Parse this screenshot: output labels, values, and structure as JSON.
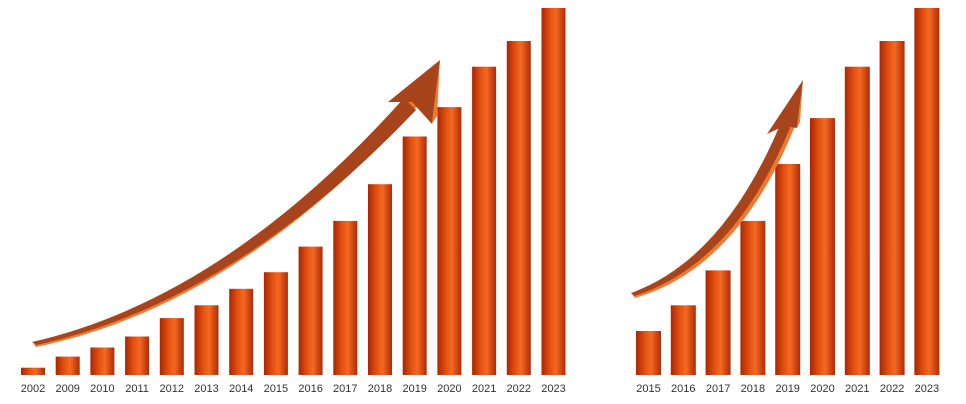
{
  "chart_data": [
    {
      "type": "bar",
      "categories": [
        "2002",
        "2009",
        "2010",
        "2011",
        "2012",
        "2013",
        "2014",
        "2015",
        "2016",
        "2017",
        "2018",
        "2019",
        "2020",
        "2021",
        "2022",
        "2023"
      ],
      "values": [
        2,
        5,
        7.5,
        10.5,
        15.5,
        19,
        23.5,
        28,
        35,
        42,
        52,
        65,
        73,
        84,
        91,
        100
      ],
      "ylim": [
        0,
        100
      ],
      "grid": false,
      "legend": "none",
      "annotations": [
        "rising-trend-arrow"
      ]
    },
    {
      "type": "bar",
      "categories": [
        "2015",
        "2016",
        "2017",
        "2018",
        "2019",
        "2020",
        "2021",
        "2022",
        "2023"
      ],
      "values": [
        12,
        19,
        28.5,
        42,
        57.5,
        70,
        84,
        91,
        100
      ],
      "ylim": [
        0,
        100
      ],
      "grid": false,
      "legend": "none",
      "annotations": [
        "rising-trend-arrow"
      ]
    }
  ],
  "colors": {
    "bar_edge": "#b52a08",
    "bar_mid": "#de4610",
    "bar_highlight": "#f56a2a",
    "arrow_top": "#a8441c",
    "arrow_side": "#f07a30",
    "tick_text": "#333333"
  }
}
